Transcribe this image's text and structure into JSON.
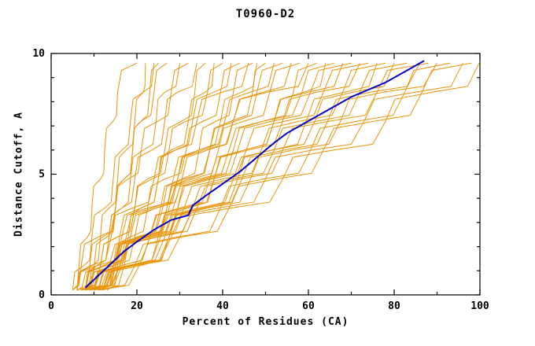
{
  "title": "T0960-D2",
  "chart_data": {
    "type": "line",
    "title": "T0960-D2",
    "xlabel": "Percent of Residues (CA)",
    "ylabel": "Distance Cutoff, A",
    "xlim": [
      0,
      100
    ],
    "ylim": [
      0,
      10
    ],
    "x_major_ticks": [
      0,
      20,
      40,
      60,
      80,
      100
    ],
    "x_minor_ticks": [
      10,
      30,
      50,
      70,
      90
    ],
    "y_major_ticks": [
      0,
      5,
      10
    ],
    "y_minor_ticks": [
      1,
      2,
      3,
      4,
      6,
      7,
      8,
      9
    ],
    "grid": false,
    "legend": "none",
    "series_color": "#e8940a",
    "highlight_color": "#0000cc",
    "axis_color": "#000000",
    "y_levels": [
      0.2,
      1.2,
      2.4,
      3.6,
      4.8,
      6.0,
      7.2,
      8.4,
      9.6
    ],
    "models_x": [
      [
        5,
        8,
        10,
        11,
        13,
        14,
        16,
        17,
        20
      ],
      [
        6,
        8,
        10,
        12,
        14,
        16,
        18,
        20,
        22
      ],
      [
        7,
        9,
        12,
        14,
        16,
        18,
        20,
        22,
        25
      ],
      [
        5,
        7,
        9,
        12,
        14,
        16,
        18,
        21,
        24
      ],
      [
        6,
        9,
        12,
        15,
        17,
        19,
        21,
        24,
        27
      ],
      [
        8,
        11,
        14,
        17,
        19,
        22,
        25,
        27,
        30
      ],
      [
        5,
        8,
        12,
        16,
        19,
        22,
        26,
        29,
        32
      ],
      [
        9,
        12,
        15,
        18,
        21,
        25,
        28,
        31,
        34
      ],
      [
        6,
        10,
        14,
        18,
        21,
        25,
        29,
        32,
        36
      ],
      [
        10,
        13,
        17,
        20,
        24,
        27,
        31,
        35,
        38
      ],
      [
        7,
        11,
        15,
        19,
        23,
        27,
        31,
        36,
        40
      ],
      [
        8,
        12,
        16,
        21,
        25,
        29,
        33,
        38,
        42
      ],
      [
        11,
        15,
        19,
        23,
        27,
        32,
        36,
        40,
        44
      ],
      [
        6,
        10,
        15,
        20,
        25,
        30,
        35,
        41,
        46
      ],
      [
        13,
        17,
        22,
        27,
        32,
        36,
        40,
        44,
        47
      ],
      [
        9,
        13,
        18,
        23,
        28,
        33,
        38,
        43,
        48
      ],
      [
        12,
        16,
        21,
        26,
        31,
        36,
        41,
        46,
        50
      ],
      [
        7,
        12,
        17,
        23,
        28,
        34,
        40,
        46,
        52
      ],
      [
        10,
        15,
        20,
        26,
        31,
        37,
        43,
        48,
        54
      ],
      [
        8,
        13,
        19,
        25,
        31,
        37,
        43,
        50,
        56
      ],
      [
        11,
        16,
        22,
        28,
        34,
        40,
        46,
        52,
        58
      ],
      [
        6,
        12,
        18,
        24,
        31,
        37,
        44,
        52,
        60
      ],
      [
        9,
        15,
        21,
        28,
        34,
        41,
        48,
        55,
        62
      ],
      [
        12,
        18,
        24,
        31,
        37,
        44,
        51,
        58,
        64
      ],
      [
        7,
        13,
        20,
        27,
        34,
        41,
        49,
        58,
        66
      ],
      [
        10,
        16,
        23,
        30,
        37,
        45,
        52,
        60,
        68
      ],
      [
        8,
        15,
        22,
        29,
        37,
        44,
        52,
        61,
        70
      ],
      [
        11,
        17,
        24,
        32,
        39,
        47,
        55,
        63,
        72
      ],
      [
        9,
        16,
        24,
        31,
        39,
        47,
        56,
        65,
        74
      ],
      [
        12,
        19,
        26,
        34,
        42,
        50,
        58,
        67,
        76
      ],
      [
        7,
        14,
        22,
        30,
        39,
        48,
        57,
        67,
        78
      ],
      [
        10,
        17,
        25,
        34,
        42,
        51,
        61,
        70,
        80
      ],
      [
        8,
        16,
        24,
        33,
        42,
        52,
        62,
        72,
        83
      ],
      [
        11,
        18,
        27,
        36,
        45,
        55,
        65,
        75,
        86
      ],
      [
        9,
        17,
        26,
        35,
        45,
        55,
        66,
        77,
        88
      ],
      [
        12,
        20,
        29,
        38,
        48,
        58,
        69,
        79,
        90
      ],
      [
        10,
        18,
        28,
        38,
        48,
        59,
        70,
        81,
        93
      ],
      [
        8,
        17,
        27,
        38,
        49,
        60,
        72,
        84,
        96
      ],
      [
        11,
        20,
        30,
        41,
        52,
        63,
        75,
        86,
        98
      ],
      [
        9,
        19,
        30,
        42,
        54,
        66,
        78,
        89,
        100
      ]
    ],
    "highlight": {
      "name": "highlighted-model",
      "points": [
        [
          8,
          0.3
        ],
        [
          11,
          0.8
        ],
        [
          14,
          1.3
        ],
        [
          17,
          1.8
        ],
        [
          20,
          2.2
        ],
        [
          24,
          2.7
        ],
        [
          28,
          3.1
        ],
        [
          32,
          3.3
        ],
        [
          33,
          3.7
        ],
        [
          36,
          4.1
        ],
        [
          40,
          4.6
        ],
        [
          44,
          5.1
        ],
        [
          48,
          5.7
        ],
        [
          52,
          6.3
        ],
        [
          55,
          6.7
        ],
        [
          58,
          7.0
        ],
        [
          62,
          7.4
        ],
        [
          66,
          7.8
        ],
        [
          70,
          8.2
        ],
        [
          74,
          8.5
        ],
        [
          78,
          8.8
        ],
        [
          82,
          9.2
        ],
        [
          85,
          9.5
        ],
        [
          87,
          9.7
        ]
      ]
    }
  }
}
